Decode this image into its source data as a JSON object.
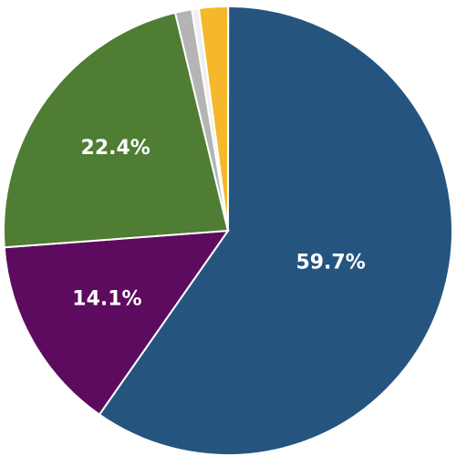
{
  "chart_data": {
    "type": "pie",
    "values": [
      2.1,
      59.7,
      14.1,
      22.4,
      1.2,
      0.5
    ],
    "value_labels": [
      null,
      "59.7%",
      "14.1%",
      "22.4%",
      null,
      null
    ],
    "colors": [
      "#f4b82a",
      "#25557f",
      "#5d0b5e",
      "#4e7d33",
      "#b4b4b4",
      "#efefef"
    ]
  }
}
